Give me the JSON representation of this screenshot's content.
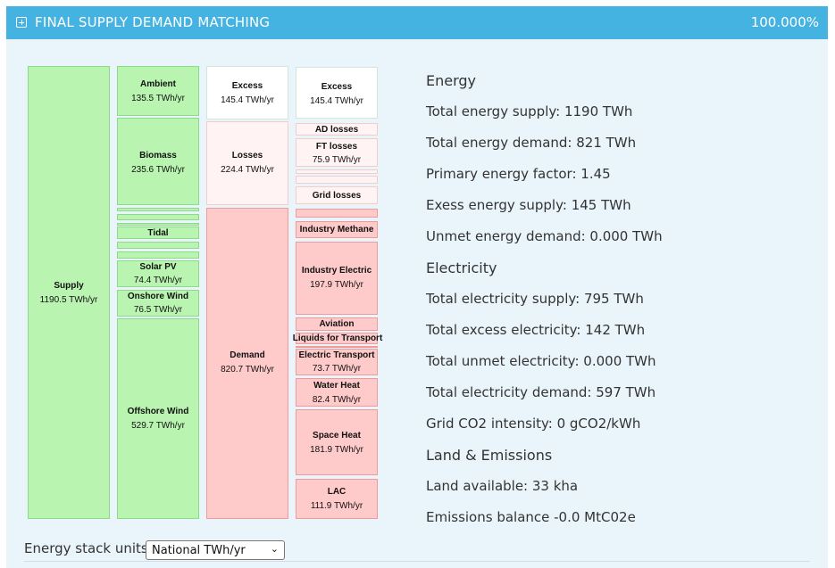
{
  "header": {
    "title": "FINAL SUPPLY DEMAND MATCHING",
    "percent": "100.000%"
  },
  "stack": {
    "supply": {
      "label": "Supply",
      "value": "1190.5 TWh/yr"
    },
    "sources": [
      {
        "label": "Ambient",
        "value": "135.5 TWh/yr"
      },
      {
        "label": "Biomass",
        "value": "235.6 TWh/yr"
      },
      {
        "label": "Tidal",
        "value": ""
      },
      {
        "label": "Solar PV",
        "value": "74.4 TWh/yr"
      },
      {
        "label": "Onshore Wind",
        "value": "76.5 TWh/yr"
      },
      {
        "label": "Offshore Wind",
        "value": "529.7 TWh/yr"
      }
    ],
    "balance": [
      {
        "label": "Excess",
        "value": "145.4 TWh/yr"
      },
      {
        "label": "Losses",
        "value": "224.4 TWh/yr"
      },
      {
        "label": "Demand",
        "value": "820.7 TWh/yr"
      }
    ],
    "uses": [
      {
        "label": "Excess",
        "value": "145.4 TWh/yr"
      },
      {
        "label": "AD losses",
        "value": ""
      },
      {
        "label": "FT losses",
        "value": "75.9 TWh/yr"
      },
      {
        "label": "Grid losses",
        "value": ""
      },
      {
        "label": "Industry Methane",
        "value": ""
      },
      {
        "label": "Industry Electric",
        "value": "197.9 TWh/yr"
      },
      {
        "label": "Aviation",
        "value": ""
      },
      {
        "label": "Liquids for Transport",
        "value": ""
      },
      {
        "label": "Electric Transport",
        "value": "73.7 TWh/yr"
      },
      {
        "label": "Water Heat",
        "value": "82.4 TWh/yr"
      },
      {
        "label": "Space Heat",
        "value": "181.9 TWh/yr"
      },
      {
        "label": "LAC",
        "value": "111.9 TWh/yr"
      }
    ]
  },
  "stats": {
    "energy_heading": "Energy",
    "energy": [
      "Total energy supply: 1190 TWh",
      "Total energy demand: 821 TWh",
      "Primary energy factor: 1.45",
      "Exess energy supply: 145 TWh",
      "Unmet energy demand: 0.000 TWh"
    ],
    "electricity_heading": "Electricity",
    "electricity": [
      "Total electricity supply: 795 TWh",
      "Total excess electricity: 142 TWh",
      "Total unmet electricity: 0.000 TWh",
      "Total electricity demand: 597 TWh",
      "Grid CO2 intensity: 0 gCO2/kWh"
    ],
    "land_heading": "Land & Emissions",
    "land": [
      "Land available: 33 kha",
      "Emissions balance -0.0 MtC02e"
    ]
  },
  "units": {
    "label": "Energy stack units:",
    "selected": "National TWh/yr"
  }
}
